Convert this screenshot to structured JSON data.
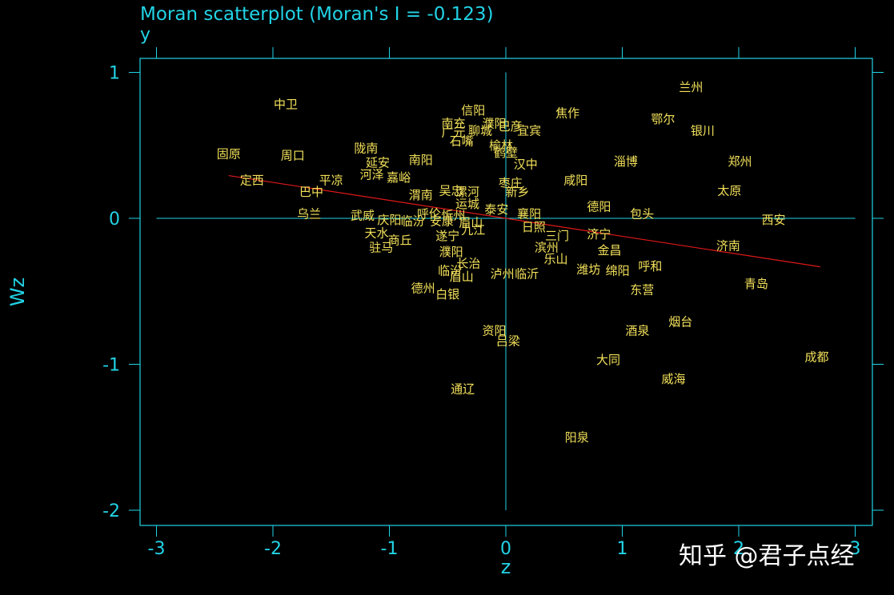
{
  "chart_data": {
    "type": "scatter",
    "title": "Moran scatterplot (Moran's I = -0.123)",
    "subtitle": "y",
    "xlabel": "z",
    "ylabel": "Wz",
    "xlim": [
      -3.15,
      3.15
    ],
    "ylim": [
      -2.1,
      1.1
    ],
    "xticks": [
      -3,
      -2,
      -1,
      0,
      1,
      2,
      3
    ],
    "yticks": [
      -2,
      -1,
      0,
      1
    ],
    "regression": {
      "slope": -0.123,
      "intercept": 0
    },
    "points": [
      {
        "label": "兰州",
        "x": 1.59,
        "y": 0.9
      },
      {
        "label": "中卫",
        "x": -1.89,
        "y": 0.78
      },
      {
        "label": "焦作",
        "x": 0.53,
        "y": 0.72
      },
      {
        "label": "鄂尔",
        "x": 1.35,
        "y": 0.68
      },
      {
        "label": "银川",
        "x": 1.69,
        "y": 0.6
      },
      {
        "label": "信阳",
        "x": -0.28,
        "y": 0.74
      },
      {
        "label": "南充",
        "x": -0.45,
        "y": 0.65
      },
      {
        "label": "广元",
        "x": -0.45,
        "y": 0.59
      },
      {
        "label": "聊城",
        "x": -0.22,
        "y": 0.6
      },
      {
        "label": "濮阳",
        "x": -0.1,
        "y": 0.65
      },
      {
        "label": "巴彦",
        "x": 0.04,
        "y": 0.63
      },
      {
        "label": "宜宾",
        "x": 0.2,
        "y": 0.6
      },
      {
        "label": "石嘴",
        "x": -0.38,
        "y": 0.53
      },
      {
        "label": "榆林",
        "x": -0.04,
        "y": 0.5
      },
      {
        "label": "鹤壁",
        "x": 0.0,
        "y": 0.45
      },
      {
        "label": "固原",
        "x": -2.38,
        "y": 0.44
      },
      {
        "label": "周口",
        "x": -1.83,
        "y": 0.43
      },
      {
        "label": "陇南",
        "x": -1.2,
        "y": 0.48
      },
      {
        "label": "延安",
        "x": -1.1,
        "y": 0.38
      },
      {
        "label": "郑州",
        "x": 2.01,
        "y": 0.39
      },
      {
        "label": "淄博",
        "x": 1.03,
        "y": 0.39
      },
      {
        "label": "汉中",
        "x": 0.17,
        "y": 0.37
      },
      {
        "label": "南阳",
        "x": -0.73,
        "y": 0.4
      },
      {
        "label": "河泽",
        "x": -1.15,
        "y": 0.3
      },
      {
        "label": "嘉峪",
        "x": -0.92,
        "y": 0.28
      },
      {
        "label": "定西",
        "x": -2.18,
        "y": 0.26
      },
      {
        "label": "平凉",
        "x": -1.5,
        "y": 0.26
      },
      {
        "label": "枣庄",
        "x": 0.04,
        "y": 0.24
      },
      {
        "label": "咸阳",
        "x": 0.6,
        "y": 0.26
      },
      {
        "label": "太原",
        "x": 1.92,
        "y": 0.19
      },
      {
        "label": "巴中",
        "x": -1.67,
        "y": 0.18
      },
      {
        "label": "渭南",
        "x": -0.73,
        "y": 0.16
      },
      {
        "label": "吴忠",
        "x": -0.47,
        "y": 0.19
      },
      {
        "label": "漯河",
        "x": -0.33,
        "y": 0.18
      },
      {
        "label": "新乡",
        "x": 0.1,
        "y": 0.18
      },
      {
        "label": "运城",
        "x": -0.33,
        "y": 0.1
      },
      {
        "label": "德阳",
        "x": 0.8,
        "y": 0.08
      },
      {
        "label": "泰安",
        "x": -0.08,
        "y": 0.06
      },
      {
        "label": "包头",
        "x": 1.17,
        "y": 0.03
      },
      {
        "label": "乌兰",
        "x": -1.69,
        "y": 0.03
      },
      {
        "label": "武威",
        "x": -1.23,
        "y": 0.02
      },
      {
        "label": "呼伦",
        "x": -0.66,
        "y": 0.03
      },
      {
        "label": "忻州",
        "x": -0.45,
        "y": 0.02
      },
      {
        "label": "襄阳",
        "x": 0.2,
        "y": 0.03
      },
      {
        "label": "西安",
        "x": 2.3,
        "y": -0.01
      },
      {
        "label": "庆阳",
        "x": -1.0,
        "y": -0.01
      },
      {
        "label": "临汾",
        "x": -0.8,
        "y": -0.02
      },
      {
        "label": "安康",
        "x": -0.55,
        "y": -0.02
      },
      {
        "label": "眉山",
        "x": -0.3,
        "y": -0.03
      },
      {
        "label": "日照",
        "x": 0.24,
        "y": -0.06
      },
      {
        "label": "天水",
        "x": -1.11,
        "y": -0.1
      },
      {
        "label": "遂宁",
        "x": -0.5,
        "y": -0.12
      },
      {
        "label": "九江",
        "x": -0.28,
        "y": -0.08
      },
      {
        "label": "三门",
        "x": 0.44,
        "y": -0.12
      },
      {
        "label": "济宁",
        "x": 0.8,
        "y": -0.11
      },
      {
        "label": "商丘",
        "x": -0.91,
        "y": -0.15
      },
      {
        "label": "驻马",
        "x": -1.07,
        "y": -0.2
      },
      {
        "label": "滨州",
        "x": 0.35,
        "y": -0.2
      },
      {
        "label": "金昌",
        "x": 0.89,
        "y": -0.22
      },
      {
        "label": "济南",
        "x": 1.91,
        "y": -0.19
      },
      {
        "label": "濮阳",
        "x": -0.47,
        "y": -0.23
      },
      {
        "label": "乐山",
        "x": 0.43,
        "y": -0.28
      },
      {
        "label": "长治",
        "x": -0.32,
        "y": -0.31
      },
      {
        "label": "呼和",
        "x": 1.24,
        "y": -0.33
      },
      {
        "label": "临汾",
        "x": -0.48,
        "y": -0.36
      },
      {
        "label": "泸州",
        "x": -0.03,
        "y": -0.38
      },
      {
        "label": "临沂",
        "x": 0.18,
        "y": -0.38
      },
      {
        "label": "潍坊",
        "x": 0.71,
        "y": -0.35
      },
      {
        "label": "绵阳",
        "x": 0.96,
        "y": -0.36
      },
      {
        "label": "眉山",
        "x": -0.38,
        "y": -0.4
      },
      {
        "label": "青岛",
        "x": 2.15,
        "y": -0.45
      },
      {
        "label": "德州",
        "x": -0.71,
        "y": -0.48
      },
      {
        "label": "东营",
        "x": 1.17,
        "y": -0.49
      },
      {
        "label": "白银",
        "x": -0.5,
        "y": -0.52
      },
      {
        "label": "烟台",
        "x": 1.5,
        "y": -0.71
      },
      {
        "label": "酒泉",
        "x": 1.13,
        "y": -0.77
      },
      {
        "label": "资阳",
        "x": -0.1,
        "y": -0.77
      },
      {
        "label": "吕梁",
        "x": 0.02,
        "y": -0.84
      },
      {
        "label": "成都",
        "x": 2.67,
        "y": -0.95
      },
      {
        "label": "大同",
        "x": 0.88,
        "y": -0.97
      },
      {
        "label": "威海",
        "x": 1.44,
        "y": -1.1
      },
      {
        "label": "通辽",
        "x": -0.37,
        "y": -1.17
      },
      {
        "label": "阳泉",
        "x": 0.61,
        "y": -1.5
      }
    ]
  },
  "watermark": "知乎 @君子点经"
}
